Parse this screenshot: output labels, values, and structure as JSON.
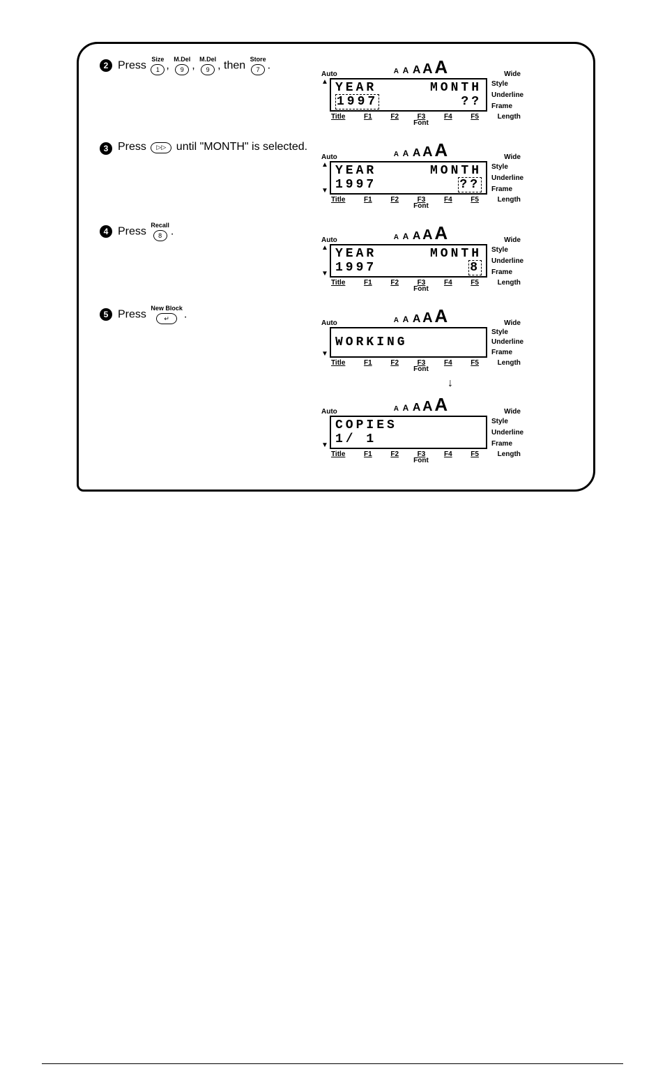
{
  "keys": {
    "size": {
      "label": "Size",
      "cap": "1"
    },
    "mdel1": {
      "label": "M.Del",
      "cap": "9"
    },
    "mdel2": {
      "label": "M.Del",
      "cap": "9"
    },
    "store": {
      "label": "Store",
      "cap": "7"
    },
    "right": {
      "label": "",
      "cap": "▷▷"
    },
    "recall": {
      "label": "Recall",
      "cap": "8"
    },
    "newblock": {
      "label": "New Block",
      "cap": "↵"
    }
  },
  "steps": {
    "s2": {
      "num": "2",
      "prefix": "Press ",
      "mid1": ", ",
      "mid2": ", ",
      "mid3": ", then ",
      "suffix": "."
    },
    "s3": {
      "num": "3",
      "prefix": "Press ",
      "suffix": " until \"MONTH\" is selected."
    },
    "s4": {
      "num": "4",
      "prefix": "Press ",
      "suffix": "."
    },
    "s5": {
      "num": "5",
      "prefix": "Press ",
      "suffix": "."
    }
  },
  "lcd_common": {
    "auto": "Auto",
    "wide": "Wide",
    "aaa": "A  A  A  A A A",
    "side1": "Style",
    "side2": "Underline",
    "side3": "Frame",
    "title": "Title",
    "f1": "F1",
    "f2": "F2",
    "f3": "F3",
    "f4": "F4",
    "f5": "F5",
    "length": "Length",
    "font": "Font"
  },
  "screens": {
    "sc1": {
      "r1a": "YEAR",
      "r1b": "MONTH",
      "r2a": "1997",
      "r2b": "??",
      "up": "▲",
      "down": ""
    },
    "sc2": {
      "r1a": "YEAR",
      "r1b": "MONTH",
      "r2a": "1997",
      "r2b": "??",
      "up": "▲",
      "down": "▼",
      "boxed": true
    },
    "sc3": {
      "r1a": "YEAR",
      "r1b": "MONTH",
      "r2a": "1997",
      "r2b": " 8 ",
      "up": "▲",
      "down": "▼",
      "boxed": true
    },
    "sc4": {
      "r1a": "WORKING",
      "r1b": "",
      "r2a": "",
      "r2b": "",
      "up": "",
      "down": "▼"
    },
    "sc5": {
      "r1a": "COPIES",
      "r1b": "",
      "r2a": " 1/ 1",
      "r2b": "",
      "up": "",
      "down": "▼"
    }
  }
}
